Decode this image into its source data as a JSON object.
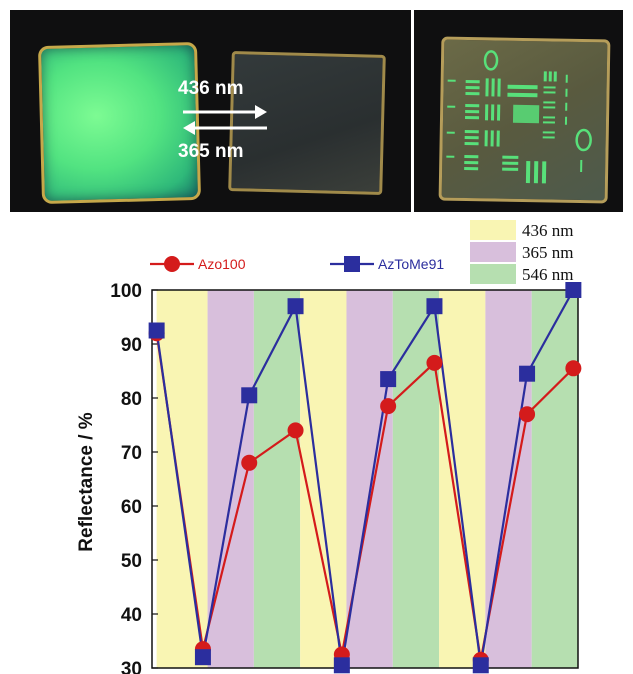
{
  "photo": {
    "arrow_top_label": "436 nm",
    "arrow_bottom_label": "365 nm"
  },
  "colors": {
    "azo100": "#d41b1b",
    "aztome91": "#2b2e9e",
    "band_436": "#f9f5b3",
    "band_365": "#d8bfdc",
    "band_546": "#b6dfb0"
  },
  "chart_data": {
    "type": "line",
    "ylabel": "Reflectance / %",
    "xlabel": "",
    "ylim": [
      30,
      100
    ],
    "yticks": [
      30,
      40,
      50,
      60,
      70,
      80,
      90,
      100
    ],
    "x": [
      0,
      1,
      2,
      3,
      4,
      5,
      6,
      7,
      8,
      9
    ],
    "bands": [
      {
        "label": "436 nm",
        "from": 0,
        "to": 1.1,
        "color": "#f9f5b3"
      },
      {
        "label": "365 nm",
        "from": 1.1,
        "to": 2.1,
        "color": "#d8bfdc"
      },
      {
        "label": "546 nm",
        "from": 2.1,
        "to": 3.1,
        "color": "#b6dfb0"
      },
      {
        "label": "436 nm",
        "from": 3.1,
        "to": 4.1,
        "color": "#f9f5b3"
      },
      {
        "label": "365 nm",
        "from": 4.1,
        "to": 5.1,
        "color": "#d8bfdc"
      },
      {
        "label": "546 nm",
        "from": 5.1,
        "to": 6.1,
        "color": "#b6dfb0"
      },
      {
        "label": "436 nm",
        "from": 6.1,
        "to": 7.1,
        "color": "#f9f5b3"
      },
      {
        "label": "365 nm",
        "from": 7.1,
        "to": 8.1,
        "color": "#d8bfdc"
      },
      {
        "label": "546 nm",
        "from": 8.1,
        "to": 9.1,
        "color": "#b6dfb0"
      }
    ],
    "series": [
      {
        "name": "Azo100",
        "color": "#d41b1b",
        "marker": "circle",
        "values": [
          92,
          33.5,
          68,
          74,
          32.5,
          78.5,
          86.5,
          31.5,
          77,
          85.5
        ]
      },
      {
        "name": "AzToMe91",
        "color": "#2b2e9e",
        "marker": "square",
        "values": [
          92.5,
          32,
          80.5,
          97,
          30.5,
          83.5,
          97,
          30.5,
          84.5,
          100
        ]
      }
    ],
    "band_legend": [
      {
        "label": "436 nm",
        "color": "#f9f5b3"
      },
      {
        "label": "365 nm",
        "color": "#d8bfdc"
      },
      {
        "label": "546 nm",
        "color": "#b6dfb0"
      }
    ]
  }
}
